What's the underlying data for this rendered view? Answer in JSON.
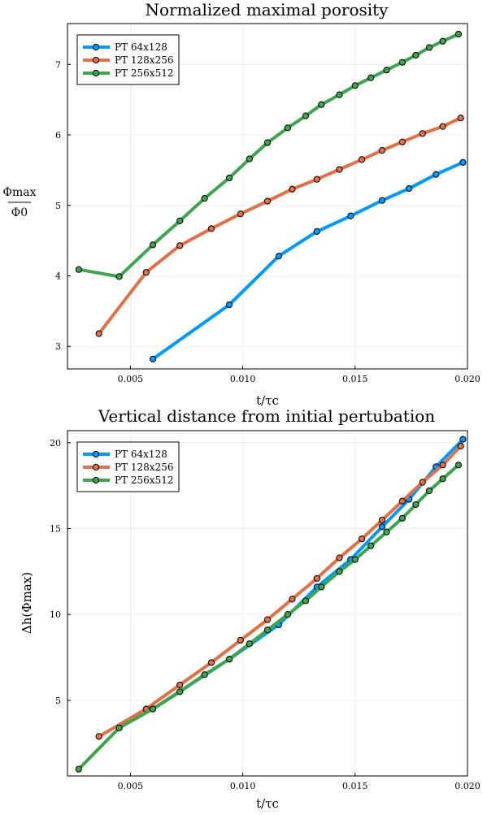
{
  "chart_data": [
    {
      "type": "line",
      "title": "Normalized maximal porosity",
      "xlabel": "t/τc",
      "ylabel_num": "Φmax",
      "ylabel_den": "Φ0",
      "xlim": [
        0.0022,
        0.02
      ],
      "ylim": [
        2.68,
        7.58
      ],
      "xticks": [
        0.005,
        0.01,
        0.015,
        0.02
      ],
      "xtick_labels": [
        "0.005",
        "0.010",
        "0.015",
        "0.020"
      ],
      "yticks": [
        3,
        4,
        5,
        6,
        7
      ],
      "ytick_labels": [
        "3",
        "4",
        "5",
        "6",
        "7"
      ],
      "grid": true,
      "legend_position": "top-left",
      "series": [
        {
          "name": "PT 64x128",
          "color": "#009AFA",
          "x": [
            0.006,
            0.0094,
            0.0116,
            0.0133,
            0.0148,
            0.0162,
            0.0174,
            0.0186,
            0.0198
          ],
          "y": [
            2.82,
            3.59,
            4.28,
            4.63,
            4.85,
            5.07,
            5.24,
            5.44,
            5.61
          ]
        },
        {
          "name": "PT 128x256",
          "color": "#E36F47",
          "x": [
            0.0036,
            0.0057,
            0.0072,
            0.0086,
            0.0099,
            0.0111,
            0.0122,
            0.0133,
            0.0143,
            0.0153,
            0.0162,
            0.0171,
            0.018,
            0.0189,
            0.0197
          ],
          "y": [
            3.18,
            4.05,
            4.43,
            4.67,
            4.88,
            5.06,
            5.23,
            5.37,
            5.51,
            5.65,
            5.78,
            5.9,
            6.02,
            6.12,
            6.24
          ]
        },
        {
          "name": "PT 256x512",
          "color": "#3EA44E",
          "x": [
            0.0027,
            0.0045,
            0.006,
            0.0072,
            0.0083,
            0.0094,
            0.0103,
            0.0111,
            0.012,
            0.0128,
            0.0135,
            0.0143,
            0.015,
            0.0157,
            0.0164,
            0.0171,
            0.0177,
            0.0183,
            0.0189,
            0.0196
          ],
          "y": [
            4.09,
            3.99,
            4.44,
            4.78,
            5.1,
            5.39,
            5.66,
            5.89,
            6.1,
            6.27,
            6.43,
            6.57,
            6.7,
            6.81,
            6.92,
            7.03,
            7.13,
            7.24,
            7.33,
            7.43
          ]
        }
      ]
    },
    {
      "type": "line",
      "title": "Vertical distance from initial pertubation",
      "xlabel": "t/τc",
      "ylabel": "Δh(Φmax)",
      "xlim": [
        0.0022,
        0.02
      ],
      "ylim": [
        0.6,
        20.7
      ],
      "xticks": [
        0.005,
        0.01,
        0.015,
        0.02
      ],
      "xtick_labels": [
        "0.005",
        "0.010",
        "0.015",
        "0.020"
      ],
      "yticks": [
        5,
        10,
        15,
        20
      ],
      "ytick_labels": [
        "5",
        "10",
        "15",
        "20"
      ],
      "grid": true,
      "legend_position": "top-left",
      "series": [
        {
          "name": "PT 64x128",
          "color": "#009AFA",
          "x": [
            0.006,
            0.0094,
            0.0116,
            0.0133,
            0.0148,
            0.0162,
            0.0174,
            0.0186,
            0.0198
          ],
          "y": [
            4.5,
            7.4,
            9.4,
            11.6,
            13.2,
            15.1,
            16.7,
            18.6,
            20.2
          ]
        },
        {
          "name": "PT 128x256",
          "color": "#E36F47",
          "x": [
            0.0036,
            0.0057,
            0.0072,
            0.0086,
            0.0099,
            0.0111,
            0.0122,
            0.0133,
            0.0143,
            0.0153,
            0.0162,
            0.0171,
            0.018,
            0.0189,
            0.0197
          ],
          "y": [
            2.9,
            4.5,
            5.9,
            7.2,
            8.5,
            9.7,
            10.9,
            12.1,
            13.3,
            14.4,
            15.5,
            16.6,
            17.7,
            18.7,
            19.8
          ]
        },
        {
          "name": "PT 256x512",
          "color": "#3EA44E",
          "x": [
            0.0027,
            0.0045,
            0.006,
            0.0072,
            0.0083,
            0.0094,
            0.0103,
            0.0111,
            0.012,
            0.0128,
            0.0135,
            0.0143,
            0.015,
            0.0157,
            0.0164,
            0.0171,
            0.0177,
            0.0183,
            0.0189,
            0.0196
          ],
          "y": [
            1.0,
            3.4,
            4.5,
            5.5,
            6.5,
            7.4,
            8.3,
            9.1,
            10.0,
            10.8,
            11.6,
            12.5,
            13.2,
            14.0,
            14.8,
            15.6,
            16.4,
            17.2,
            17.9,
            18.7
          ]
        }
      ]
    }
  ]
}
